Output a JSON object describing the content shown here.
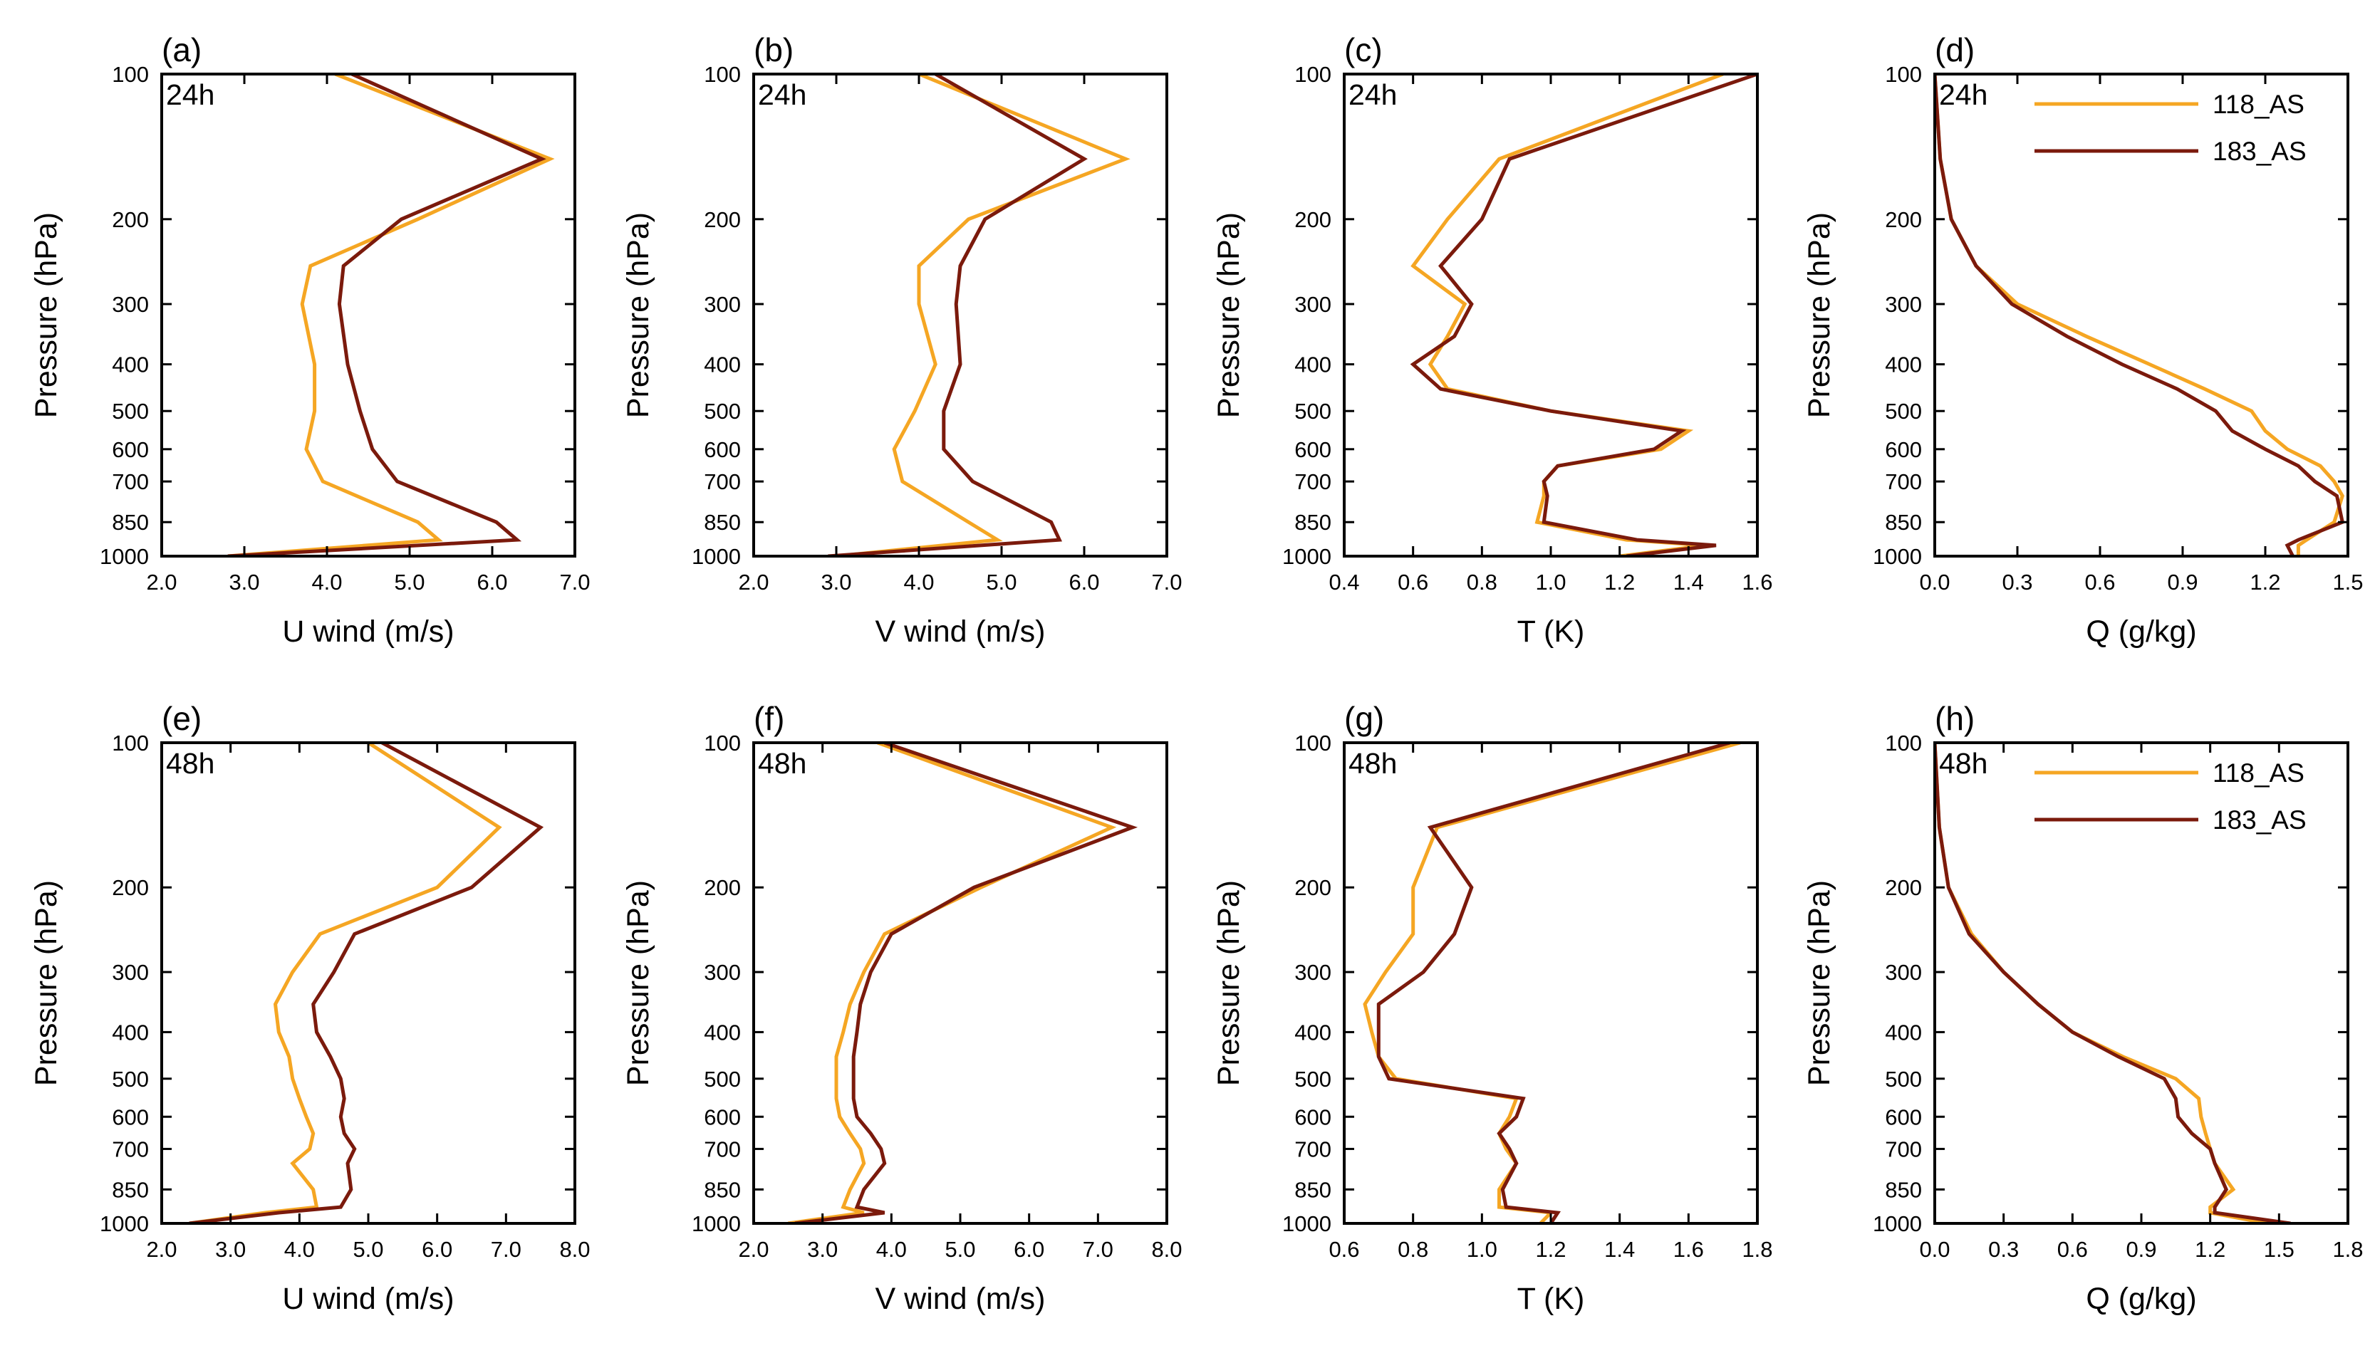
{
  "colors": {
    "series_118": "#f5a623",
    "series_183": "#7b1a0c",
    "axis": "#000000",
    "background": "#ffffff"
  },
  "chart_data": [
    {
      "type": "line",
      "panel": "(a)",
      "time": "24h",
      "xlabel": "U wind (m/s)",
      "ylabel": "Pressure (hPa)",
      "xlim": [
        2.0,
        7.0
      ],
      "xticks": [
        2,
        3,
        4,
        5,
        6,
        7
      ],
      "xtick_labels": [
        "2.0",
        "3.0",
        "4.0",
        "5.0",
        "6.0",
        "7.0"
      ],
      "ylim": [
        100,
        1000
      ],
      "yticks": [
        100,
        200,
        300,
        400,
        500,
        600,
        700,
        850,
        1000
      ],
      "ytick_labels": [
        "100",
        "200",
        "300",
        "400",
        "500",
        "600",
        "700",
        "850",
        "1000"
      ],
      "levels": [
        100,
        150,
        200,
        250,
        300,
        400,
        500,
        600,
        700,
        850,
        925,
        1000
      ],
      "series": [
        {
          "name": "118_AS",
          "values": [
            4.1,
            6.7,
            5.1,
            3.8,
            3.7,
            3.85,
            3.85,
            3.75,
            3.95,
            5.1,
            5.35,
            2.8
          ]
        },
        {
          "name": "183_AS",
          "values": [
            4.3,
            6.6,
            4.9,
            4.2,
            4.15,
            4.25,
            4.4,
            4.55,
            4.85,
            6.05,
            6.3,
            2.8
          ]
        }
      ],
      "legend": false
    },
    {
      "type": "line",
      "panel": "(b)",
      "time": "24h",
      "xlabel": "V wind (m/s)",
      "ylabel": "Pressure (hPa)",
      "xlim": [
        2.0,
        7.0
      ],
      "xticks": [
        2,
        3,
        4,
        5,
        6,
        7
      ],
      "xtick_labels": [
        "2.0",
        "3.0",
        "4.0",
        "5.0",
        "6.0",
        "7.0"
      ],
      "ylim": [
        100,
        1000
      ],
      "yticks": [
        100,
        200,
        300,
        400,
        500,
        600,
        700,
        850,
        1000
      ],
      "ytick_labels": [
        "100",
        "200",
        "300",
        "400",
        "500",
        "600",
        "700",
        "850",
        "1000"
      ],
      "levels": [
        100,
        150,
        200,
        250,
        300,
        400,
        500,
        600,
        700,
        850,
        925,
        1000
      ],
      "series": [
        {
          "name": "118_AS",
          "values": [
            4.0,
            6.5,
            4.6,
            4.0,
            4.0,
            4.2,
            3.95,
            3.7,
            3.8,
            4.6,
            4.95,
            3.0
          ]
        },
        {
          "name": "183_AS",
          "values": [
            4.2,
            6.0,
            4.8,
            4.5,
            4.45,
            4.5,
            4.3,
            4.3,
            4.65,
            5.6,
            5.7,
            2.9
          ]
        }
      ],
      "legend": false
    },
    {
      "type": "line",
      "panel": "(c)",
      "time": "24h",
      "xlabel": "T (K)",
      "ylabel": "Pressure (hPa)",
      "xlim": [
        0.4,
        1.6
      ],
      "xticks": [
        0.4,
        0.6,
        0.8,
        1.0,
        1.2,
        1.4,
        1.6
      ],
      "xtick_labels": [
        "0.4",
        "0.6",
        "0.8",
        "1.0",
        "1.2",
        "1.4",
        "1.6"
      ],
      "ylim": [
        100,
        1000
      ],
      "yticks": [
        100,
        200,
        300,
        400,
        500,
        600,
        700,
        850,
        1000
      ],
      "ytick_labels": [
        "100",
        "200",
        "300",
        "400",
        "500",
        "600",
        "700",
        "850",
        "1000"
      ],
      "levels": [
        100,
        150,
        200,
        250,
        300,
        350,
        400,
        450,
        500,
        550,
        600,
        650,
        700,
        750,
        850,
        925,
        950,
        1000
      ],
      "series": [
        {
          "name": "118_AS",
          "values": [
            1.5,
            0.85,
            0.7,
            0.6,
            0.75,
            0.7,
            0.65,
            0.7,
            1.0,
            1.4,
            1.32,
            1.02,
            0.98,
            0.98,
            0.96,
            1.22,
            1.45,
            1.2
          ]
        },
        {
          "name": "183_AS",
          "values": [
            1.6,
            0.88,
            0.8,
            0.68,
            0.77,
            0.72,
            0.6,
            0.68,
            1.0,
            1.38,
            1.3,
            1.02,
            0.98,
            0.99,
            0.98,
            1.25,
            1.48,
            1.22
          ]
        }
      ],
      "legend": false
    },
    {
      "type": "line",
      "panel": "(d)",
      "time": "24h",
      "xlabel": "Q (g/kg)",
      "ylabel": "Pressure (hPa)",
      "xlim": [
        0.0,
        1.5
      ],
      "xticks": [
        0,
        0.3,
        0.6,
        0.9,
        1.2,
        1.5
      ],
      "xtick_labels": [
        "0.0",
        "0.3",
        "0.6",
        "0.9",
        "1.2",
        "1.5"
      ],
      "ylim": [
        100,
        1000
      ],
      "yticks": [
        100,
        200,
        300,
        400,
        500,
        600,
        700,
        850,
        1000
      ],
      "ytick_labels": [
        "100",
        "200",
        "300",
        "400",
        "500",
        "600",
        "700",
        "850",
        "1000"
      ],
      "levels": [
        100,
        150,
        200,
        250,
        300,
        350,
        400,
        450,
        500,
        550,
        600,
        650,
        700,
        750,
        850,
        925,
        950,
        1000
      ],
      "series": [
        {
          "name": "118_AS",
          "values": [
            0.0,
            0.02,
            0.06,
            0.15,
            0.3,
            0.55,
            0.78,
            0.98,
            1.15,
            1.2,
            1.28,
            1.4,
            1.45,
            1.48,
            1.45,
            1.35,
            1.32,
            1.32
          ]
        },
        {
          "name": "183_AS",
          "values": [
            0.0,
            0.02,
            0.06,
            0.15,
            0.28,
            0.48,
            0.68,
            0.88,
            1.02,
            1.08,
            1.2,
            1.32,
            1.38,
            1.46,
            1.48,
            1.32,
            1.28,
            1.3
          ]
        }
      ],
      "legend": true,
      "legend_position": "top-right"
    },
    {
      "type": "line",
      "panel": "(e)",
      "time": "48h",
      "xlabel": "U wind (m/s)",
      "ylabel": "Pressure (hPa)",
      "xlim": [
        2.0,
        8.0
      ],
      "xticks": [
        2,
        3,
        4,
        5,
        6,
        7,
        8
      ],
      "xtick_labels": [
        "2.0",
        "3.0",
        "4.0",
        "5.0",
        "6.0",
        "7.0",
        "8.0"
      ],
      "ylim": [
        100,
        1000
      ],
      "yticks": [
        100,
        200,
        300,
        400,
        500,
        600,
        700,
        850,
        1000
      ],
      "ytick_labels": [
        "100",
        "200",
        "300",
        "400",
        "500",
        "600",
        "700",
        "850",
        "1000"
      ],
      "levels": [
        100,
        150,
        200,
        250,
        300,
        350,
        400,
        450,
        500,
        550,
        600,
        650,
        700,
        750,
        850,
        925,
        950,
        1000
      ],
      "series": [
        {
          "name": "118_AS",
          "values": [
            5.0,
            6.9,
            6.0,
            4.3,
            3.9,
            3.65,
            3.7,
            3.85,
            3.9,
            4.0,
            4.1,
            4.2,
            4.15,
            3.9,
            4.2,
            4.25,
            3.5,
            2.4
          ]
        },
        {
          "name": "183_AS",
          "values": [
            5.2,
            7.5,
            6.5,
            4.8,
            4.5,
            4.2,
            4.25,
            4.45,
            4.6,
            4.65,
            4.6,
            4.65,
            4.8,
            4.7,
            4.75,
            4.6,
            3.7,
            2.4
          ]
        }
      ],
      "legend": false
    },
    {
      "type": "line",
      "panel": "(f)",
      "time": "48h",
      "xlabel": "V wind (m/s)",
      "ylabel": "Pressure (hPa)",
      "xlim": [
        2.0,
        8.0
      ],
      "xticks": [
        2,
        3,
        4,
        5,
        6,
        7,
        8
      ],
      "xtick_labels": [
        "2.0",
        "3.0",
        "4.0",
        "5.0",
        "6.0",
        "7.0",
        "8.0"
      ],
      "ylim": [
        100,
        1000
      ],
      "yticks": [
        100,
        200,
        300,
        400,
        500,
        600,
        700,
        850,
        1000
      ],
      "ytick_labels": [
        "100",
        "200",
        "300",
        "400",
        "500",
        "600",
        "700",
        "850",
        "1000"
      ],
      "levels": [
        100,
        150,
        200,
        250,
        300,
        350,
        400,
        450,
        500,
        550,
        600,
        650,
        700,
        750,
        850,
        925,
        950,
        1000
      ],
      "series": [
        {
          "name": "118_AS",
          "values": [
            3.8,
            7.2,
            5.3,
            3.9,
            3.6,
            3.4,
            3.3,
            3.2,
            3.2,
            3.2,
            3.25,
            3.4,
            3.55,
            3.6,
            3.4,
            3.3,
            3.6,
            2.5
          ]
        },
        {
          "name": "183_AS",
          "values": [
            3.9,
            7.5,
            5.2,
            4.0,
            3.7,
            3.55,
            3.5,
            3.45,
            3.45,
            3.45,
            3.5,
            3.7,
            3.85,
            3.9,
            3.6,
            3.5,
            3.9,
            2.6
          ]
        }
      ],
      "legend": false
    },
    {
      "type": "line",
      "panel": "(g)",
      "time": "48h",
      "xlabel": "T (K)",
      "ylabel": "Pressure (hPa)",
      "xlim": [
        0.6,
        1.8
      ],
      "xticks": [
        0.6,
        0.8,
        1.0,
        1.2,
        1.4,
        1.6,
        1.8
      ],
      "xtick_labels": [
        "0.6",
        "0.8",
        "1.0",
        "1.2",
        "1.4",
        "1.6",
        "1.8"
      ],
      "ylim": [
        100,
        1000
      ],
      "yticks": [
        100,
        200,
        300,
        400,
        500,
        600,
        700,
        850,
        1000
      ],
      "ytick_labels": [
        "100",
        "200",
        "300",
        "400",
        "500",
        "600",
        "700",
        "850",
        "1000"
      ],
      "levels": [
        100,
        150,
        200,
        250,
        300,
        350,
        400,
        450,
        500,
        550,
        600,
        650,
        700,
        750,
        850,
        925,
        950,
        1000
      ],
      "series": [
        {
          "name": "118_AS",
          "values": [
            1.75,
            0.87,
            0.8,
            0.8,
            0.72,
            0.66,
            0.68,
            0.7,
            0.75,
            1.1,
            1.08,
            1.05,
            1.07,
            1.1,
            1.05,
            1.05,
            1.2,
            1.17
          ]
        },
        {
          "name": "183_AS",
          "values": [
            1.72,
            0.85,
            0.97,
            0.92,
            0.83,
            0.7,
            0.7,
            0.7,
            0.73,
            1.12,
            1.1,
            1.05,
            1.08,
            1.1,
            1.06,
            1.07,
            1.22,
            1.2
          ]
        }
      ],
      "legend": false
    },
    {
      "type": "line",
      "panel": "(h)",
      "time": "48h",
      "xlabel": "Q (g/kg)",
      "ylabel": "Pressure (hPa)",
      "xlim": [
        0.0,
        1.8
      ],
      "xticks": [
        0,
        0.3,
        0.6,
        0.9,
        1.2,
        1.5,
        1.8
      ],
      "xtick_labels": [
        "0.0",
        "0.3",
        "0.6",
        "0.9",
        "1.2",
        "1.5",
        "1.8"
      ],
      "ylim": [
        100,
        1000
      ],
      "yticks": [
        100,
        200,
        300,
        400,
        500,
        600,
        700,
        850,
        1000
      ],
      "ytick_labels": [
        "100",
        "200",
        "300",
        "400",
        "500",
        "600",
        "700",
        "850",
        "1000"
      ],
      "levels": [
        100,
        150,
        200,
        250,
        300,
        350,
        400,
        450,
        500,
        550,
        600,
        650,
        700,
        750,
        850,
        925,
        950,
        1000
      ],
      "series": [
        {
          "name": "118_AS",
          "values": [
            0.0,
            0.02,
            0.06,
            0.16,
            0.3,
            0.45,
            0.6,
            0.82,
            1.05,
            1.15,
            1.16,
            1.18,
            1.2,
            1.22,
            1.3,
            1.2,
            1.2,
            1.45
          ]
        },
        {
          "name": "183_AS",
          "values": [
            0.0,
            0.02,
            0.06,
            0.15,
            0.3,
            0.45,
            0.6,
            0.8,
            1.0,
            1.05,
            1.06,
            1.12,
            1.2,
            1.22,
            1.27,
            1.22,
            1.22,
            1.55
          ]
        }
      ],
      "legend": true,
      "legend_position": "top-right"
    }
  ]
}
